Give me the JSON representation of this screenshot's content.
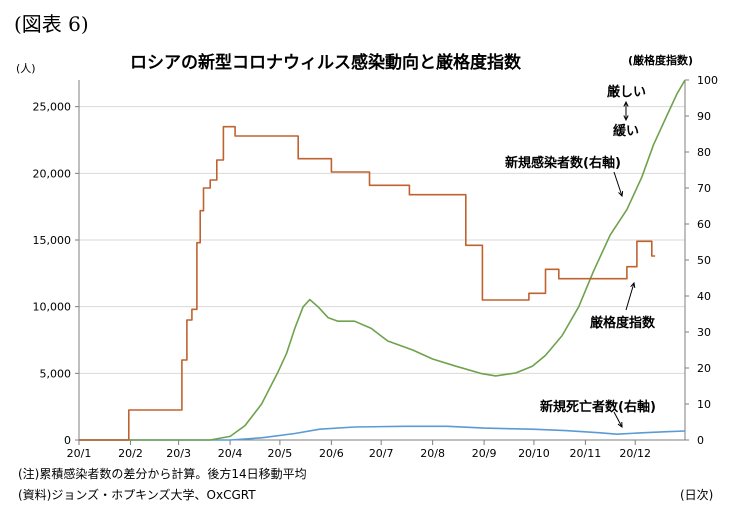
{
  "figure_label": "(図表 6)",
  "note": "(注)累積感染者数の差分から計算。後方14日移動平均",
  "source": "(資料)ジョンズ・ホプキンズ大学、OxCGRT",
  "chart_data": {
    "type": "line",
    "title": "ロシアの新型コロナウィルス感染動向と厳格度指数",
    "ylabel_left": "(人)",
    "ylabel_right": "(厳格度指数)",
    "xlabel": "(日次)",
    "x_ticks": [
      "20/1",
      "20/2",
      "20/3",
      "20/4",
      "20/5",
      "20/6",
      "20/7",
      "20/8",
      "20/9",
      "20/10",
      "20/11",
      "20/12"
    ],
    "y_left_ticks": [
      "0",
      "5,000",
      "10,000",
      "15,000",
      "20,000",
      "25,000"
    ],
    "y_right_ticks": [
      "0",
      "10",
      "20",
      "30",
      "40",
      "50",
      "60",
      "70",
      "80",
      "90",
      "100"
    ],
    "y_left_lim": [
      0,
      27000
    ],
    "y_right_lim": [
      0,
      100
    ],
    "grid": "horizontal-left-axis",
    "colors": {
      "stringency": "#c0622f",
      "new_cases": "#6ea24c",
      "new_deaths": "#5b9bd5"
    },
    "series": [
      {
        "name": "厳格度指数",
        "axis": "left",
        "step": true,
        "color_key": "stringency",
        "points": [
          [
            "2020-01-01",
            0
          ],
          [
            "2020-01-31",
            0
          ],
          [
            "2020-01-31",
            2250
          ],
          [
            "2020-03-03",
            2250
          ],
          [
            "2020-03-03",
            6000
          ],
          [
            "2020-03-06",
            6000
          ],
          [
            "2020-03-06",
            9000
          ],
          [
            "2020-03-09",
            9000
          ],
          [
            "2020-03-09",
            9800
          ],
          [
            "2020-03-12",
            9800
          ],
          [
            "2020-03-12",
            14800
          ],
          [
            "2020-03-14",
            14800
          ],
          [
            "2020-03-14",
            17200
          ],
          [
            "2020-03-16",
            17200
          ],
          [
            "2020-03-16",
            18900
          ],
          [
            "2020-03-20",
            18900
          ],
          [
            "2020-03-20",
            19500
          ],
          [
            "2020-03-24",
            19500
          ],
          [
            "2020-03-24",
            21000
          ],
          [
            "2020-03-28",
            21000
          ],
          [
            "2020-03-28",
            23500
          ],
          [
            "2020-04-04",
            23500
          ],
          [
            "2020-04-04",
            22800
          ],
          [
            "2020-05-12",
            22800
          ],
          [
            "2020-05-12",
            21100
          ],
          [
            "2020-06-01",
            21100
          ],
          [
            "2020-06-01",
            20100
          ],
          [
            "2020-06-24",
            20100
          ],
          [
            "2020-06-24",
            19100
          ],
          [
            "2020-07-18",
            19100
          ],
          [
            "2020-07-18",
            18400
          ],
          [
            "2020-08-21",
            18400
          ],
          [
            "2020-08-21",
            14600
          ],
          [
            "2020-08-31",
            14600
          ],
          [
            "2020-08-31",
            10500
          ],
          [
            "2020-09-28",
            10500
          ],
          [
            "2020-09-28",
            11000
          ],
          [
            "2020-10-08",
            11000
          ],
          [
            "2020-10-08",
            12800
          ],
          [
            "2020-10-16",
            12800
          ],
          [
            "2020-10-16",
            12100
          ],
          [
            "2020-11-26",
            12100
          ],
          [
            "2020-11-26",
            13000
          ],
          [
            "2020-12-02",
            13000
          ],
          [
            "2020-12-02",
            14900
          ],
          [
            "2020-12-11",
            14900
          ],
          [
            "2020-12-11",
            13800
          ],
          [
            "2020-12-13",
            13800
          ]
        ]
      },
      {
        "name": "新規感染者数(右軸)",
        "axis": "right",
        "color_key": "new_cases",
        "points": [
          [
            "2020-01-01",
            0
          ],
          [
            "2020-03-20",
            0
          ],
          [
            "2020-04-01",
            1
          ],
          [
            "2020-04-10",
            4
          ],
          [
            "2020-04-20",
            10
          ],
          [
            "2020-04-30",
            19
          ],
          [
            "2020-05-05",
            24
          ],
          [
            "2020-05-10",
            31
          ],
          [
            "2020-05-15",
            37
          ],
          [
            "2020-05-19",
            39
          ],
          [
            "2020-05-24",
            37
          ],
          [
            "2020-05-30",
            34
          ],
          [
            "2020-06-05",
            33
          ],
          [
            "2020-06-15",
            33
          ],
          [
            "2020-06-25",
            31
          ],
          [
            "2020-07-05",
            27.5
          ],
          [
            "2020-07-20",
            25
          ],
          [
            "2020-08-01",
            22.5
          ],
          [
            "2020-08-15",
            20.5
          ],
          [
            "2020-08-30",
            18.5
          ],
          [
            "2020-09-08",
            17.8
          ],
          [
            "2020-09-20",
            18.6
          ],
          [
            "2020-09-30",
            20.5
          ],
          [
            "2020-10-08",
            23.5
          ],
          [
            "2020-10-18",
            29
          ],
          [
            "2020-10-28",
            37
          ],
          [
            "2020-11-06",
            47
          ],
          [
            "2020-11-16",
            57
          ],
          [
            "2020-11-26",
            64
          ],
          [
            "2020-12-05",
            73
          ],
          [
            "2020-12-12",
            82
          ],
          [
            "2020-12-20",
            90
          ],
          [
            "2020-12-26",
            96
          ],
          [
            "2020-12-31",
            100
          ]
        ]
      },
      {
        "name": "新規死亡者数(右軸)",
        "axis": "right",
        "color_key": "new_deaths",
        "points": [
          [
            "2020-01-01",
            0
          ],
          [
            "2020-04-01",
            0
          ],
          [
            "2020-04-20",
            0.6
          ],
          [
            "2020-05-10",
            1.8
          ],
          [
            "2020-05-25",
            3.0
          ],
          [
            "2020-06-15",
            3.6
          ],
          [
            "2020-07-15",
            3.8
          ],
          [
            "2020-08-10",
            3.8
          ],
          [
            "2020-09-01",
            3.3
          ],
          [
            "2020-09-30",
            3.0
          ],
          [
            "2020-10-20",
            2.6
          ],
          [
            "2020-11-10",
            2.0
          ],
          [
            "2020-11-20",
            1.6
          ],
          [
            "2020-12-05",
            2.0
          ],
          [
            "2020-12-20",
            2.3
          ],
          [
            "2020-12-31",
            2.5
          ]
        ]
      }
    ],
    "annotations": [
      {
        "text": "厳しい",
        "key": "strict"
      },
      {
        "text": "緩い",
        "key": "loose"
      },
      {
        "text": "新規感染者数(右軸)",
        "key": "cases"
      },
      {
        "text": "厳格度指数",
        "key": "stringency"
      },
      {
        "text": "新規死亡者数(右軸)",
        "key": "deaths"
      }
    ]
  }
}
